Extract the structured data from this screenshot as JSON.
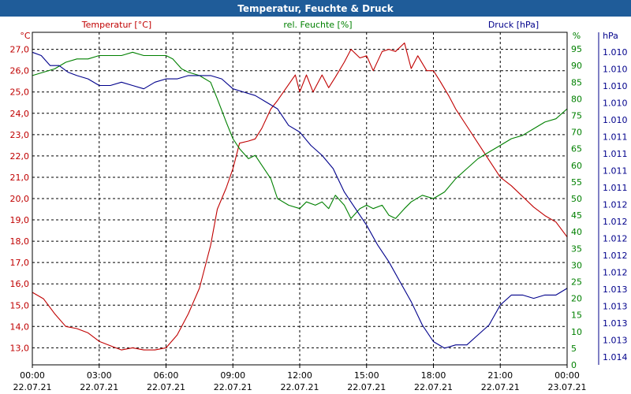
{
  "colors": {
    "title_bar": "#1f5c99",
    "temperature": "#c00000",
    "humidity": "#008000",
    "pressure": "#00008b",
    "grid": "#000000",
    "axis_text": "#000000"
  },
  "chart_data": {
    "type": "line",
    "title": "Temperatur, Feuchte & Druck",
    "x": {
      "ticks": [
        {
          "time": "00:00",
          "date": "22.07.21",
          "hours": 0
        },
        {
          "time": "03:00",
          "date": "22.07.21",
          "hours": 3
        },
        {
          "time": "06:00",
          "date": "22.07.21",
          "hours": 6
        },
        {
          "time": "09:00",
          "date": "22.07.21",
          "hours": 9
        },
        {
          "time": "12:00",
          "date": "22.07.21",
          "hours": 12
        },
        {
          "time": "15:00",
          "date": "22.07.21",
          "hours": 15
        },
        {
          "time": "18:00",
          "date": "22.07.21",
          "hours": 18
        },
        {
          "time": "21:00",
          "date": "22.07.21",
          "hours": 21
        },
        {
          "time": "00:00",
          "date": "23.07.21",
          "hours": 24
        }
      ],
      "range": [
        0,
        24
      ]
    },
    "axes": {
      "temperature": {
        "label": "Temperatur [°C]",
        "unit": "°C",
        "range": [
          12.2,
          27.8
        ],
        "ticks": [
          "13,0",
          "14,0",
          "15,0",
          "16,0",
          "17,0",
          "18,0",
          "19,0",
          "20,0",
          "21,0",
          "22,0",
          "23,0",
          "24,0",
          "25,0",
          "26,0",
          "27,0"
        ]
      },
      "humidity": {
        "label": "rel. Feuchte [%]",
        "unit": "%",
        "range": [
          0,
          100
        ],
        "ticks": [
          "0",
          "5",
          "10",
          "15",
          "20",
          "25",
          "30",
          "35",
          "40",
          "45",
          "50",
          "55",
          "60",
          "65",
          "70",
          "75",
          "80",
          "85",
          "90",
          "95"
        ]
      },
      "pressure": {
        "label": "Druck [hPa]",
        "unit": "hPa",
        "ticks": [
          "1.010",
          "1.010",
          "1.010",
          "1.010",
          "1.010",
          "1.011",
          "1.011",
          "1.011",
          "1.011",
          "1.012",
          "1.012",
          "1.012",
          "1.012",
          "1.012",
          "1.013",
          "1.013",
          "1.013",
          "1.013",
          "1.014"
        ]
      }
    },
    "series": [
      {
        "name": "Temperatur",
        "axis": "temperature",
        "points": [
          [
            0,
            15.6
          ],
          [
            0.5,
            15.3
          ],
          [
            1.0,
            14.6
          ],
          [
            1.5,
            14.0
          ],
          [
            2.0,
            13.9
          ],
          [
            2.5,
            13.7
          ],
          [
            3.0,
            13.3
          ],
          [
            3.5,
            13.1
          ],
          [
            4.0,
            12.9
          ],
          [
            4.5,
            13.0
          ],
          [
            5.0,
            12.9
          ],
          [
            5.5,
            12.9
          ],
          [
            6.0,
            13.0
          ],
          [
            6.5,
            13.6
          ],
          [
            7.0,
            14.6
          ],
          [
            7.5,
            15.8
          ],
          [
            8.0,
            17.8
          ],
          [
            8.3,
            19.5
          ],
          [
            8.7,
            20.5
          ],
          [
            9.0,
            21.4
          ],
          [
            9.3,
            22.6
          ],
          [
            9.7,
            22.7
          ],
          [
            10.0,
            22.8
          ],
          [
            10.3,
            23.3
          ],
          [
            10.7,
            24.2
          ],
          [
            11.0,
            24.6
          ],
          [
            11.4,
            25.2
          ],
          [
            11.8,
            25.8
          ],
          [
            12.0,
            25.0
          ],
          [
            12.3,
            25.8
          ],
          [
            12.6,
            25.0
          ],
          [
            13.0,
            25.8
          ],
          [
            13.3,
            25.2
          ],
          [
            13.6,
            25.7
          ],
          [
            14.0,
            26.4
          ],
          [
            14.3,
            27.0
          ],
          [
            14.7,
            26.6
          ],
          [
            15.0,
            26.7
          ],
          [
            15.3,
            26.0
          ],
          [
            15.7,
            26.9
          ],
          [
            16.0,
            27.0
          ],
          [
            16.3,
            26.9
          ],
          [
            16.7,
            27.3
          ],
          [
            17.0,
            26.1
          ],
          [
            17.3,
            26.7
          ],
          [
            17.7,
            26.0
          ],
          [
            18.0,
            26.0
          ],
          [
            18.3,
            25.5
          ],
          [
            18.7,
            24.8
          ],
          [
            19.0,
            24.2
          ],
          [
            19.5,
            23.4
          ],
          [
            20.0,
            22.6
          ],
          [
            20.5,
            21.8
          ],
          [
            21.0,
            21.0
          ],
          [
            21.5,
            20.6
          ],
          [
            22.0,
            20.1
          ],
          [
            22.5,
            19.6
          ],
          [
            23.0,
            19.2
          ],
          [
            23.5,
            18.9
          ],
          [
            24.0,
            18.2
          ]
        ]
      },
      {
        "name": "rel. Feuchte",
        "axis": "humidity",
        "points": [
          [
            0,
            87
          ],
          [
            0.5,
            88
          ],
          [
            1.0,
            89
          ],
          [
            1.5,
            91
          ],
          [
            2.0,
            92
          ],
          [
            2.5,
            92
          ],
          [
            3.0,
            93
          ],
          [
            3.5,
            93
          ],
          [
            4.0,
            93
          ],
          [
            4.5,
            94
          ],
          [
            5.0,
            93
          ],
          [
            5.5,
            93
          ],
          [
            6.0,
            93
          ],
          [
            6.3,
            92
          ],
          [
            6.7,
            89
          ],
          [
            7.0,
            88
          ],
          [
            7.5,
            87
          ],
          [
            8.0,
            85
          ],
          [
            8.3,
            80
          ],
          [
            8.7,
            73
          ],
          [
            9.0,
            68
          ],
          [
            9.3,
            65
          ],
          [
            9.7,
            62
          ],
          [
            10.0,
            63
          ],
          [
            10.3,
            60
          ],
          [
            10.7,
            56
          ],
          [
            11.0,
            50
          ],
          [
            11.5,
            48
          ],
          [
            12.0,
            47
          ],
          [
            12.3,
            49
          ],
          [
            12.7,
            48
          ],
          [
            13.0,
            49
          ],
          [
            13.3,
            47
          ],
          [
            13.6,
            51
          ],
          [
            14.0,
            48
          ],
          [
            14.3,
            44
          ],
          [
            14.7,
            47
          ],
          [
            15.0,
            48
          ],
          [
            15.3,
            47
          ],
          [
            15.7,
            48
          ],
          [
            16.0,
            45
          ],
          [
            16.3,
            44
          ],
          [
            16.7,
            47
          ],
          [
            17.0,
            49
          ],
          [
            17.5,
            51
          ],
          [
            18.0,
            50
          ],
          [
            18.5,
            52
          ],
          [
            19.0,
            56
          ],
          [
            19.5,
            59
          ],
          [
            20.0,
            62
          ],
          [
            20.5,
            64
          ],
          [
            21.0,
            66
          ],
          [
            21.5,
            68
          ],
          [
            22.0,
            69
          ],
          [
            22.5,
            71
          ],
          [
            23.0,
            73
          ],
          [
            23.5,
            74
          ],
          [
            24.0,
            77
          ]
        ]
      },
      {
        "name": "Druck",
        "axis": "pressure",
        "points": [
          [
            0,
            94
          ],
          [
            0.4,
            93
          ],
          [
            0.8,
            90
          ],
          [
            1.2,
            90
          ],
          [
            1.6,
            88
          ],
          [
            2.0,
            87
          ],
          [
            2.5,
            86
          ],
          [
            3.0,
            84
          ],
          [
            3.5,
            84
          ],
          [
            4.0,
            85
          ],
          [
            4.5,
            84
          ],
          [
            5.0,
            83
          ],
          [
            5.5,
            85
          ],
          [
            6.0,
            86
          ],
          [
            6.5,
            86
          ],
          [
            7.0,
            87
          ],
          [
            7.5,
            87
          ],
          [
            8.0,
            87
          ],
          [
            8.5,
            86
          ],
          [
            9.0,
            83
          ],
          [
            9.5,
            82
          ],
          [
            10.0,
            81
          ],
          [
            10.5,
            79
          ],
          [
            11.0,
            77
          ],
          [
            11.5,
            72
          ],
          [
            12.0,
            70
          ],
          [
            12.5,
            66
          ],
          [
            13.0,
            63
          ],
          [
            13.5,
            59
          ],
          [
            14.0,
            52
          ],
          [
            14.5,
            47
          ],
          [
            15.0,
            42
          ],
          [
            15.5,
            36
          ],
          [
            16.0,
            31
          ],
          [
            16.5,
            25
          ],
          [
            17.0,
            19
          ],
          [
            17.5,
            12
          ],
          [
            18.0,
            7
          ],
          [
            18.5,
            5
          ],
          [
            19.0,
            6
          ],
          [
            19.5,
            6
          ],
          [
            20.0,
            9
          ],
          [
            20.5,
            12
          ],
          [
            21.0,
            18
          ],
          [
            21.5,
            21
          ],
          [
            22.0,
            21
          ],
          [
            22.5,
            20
          ],
          [
            23.0,
            21
          ],
          [
            23.5,
            21
          ],
          [
            24.0,
            23
          ]
        ]
      }
    ]
  }
}
